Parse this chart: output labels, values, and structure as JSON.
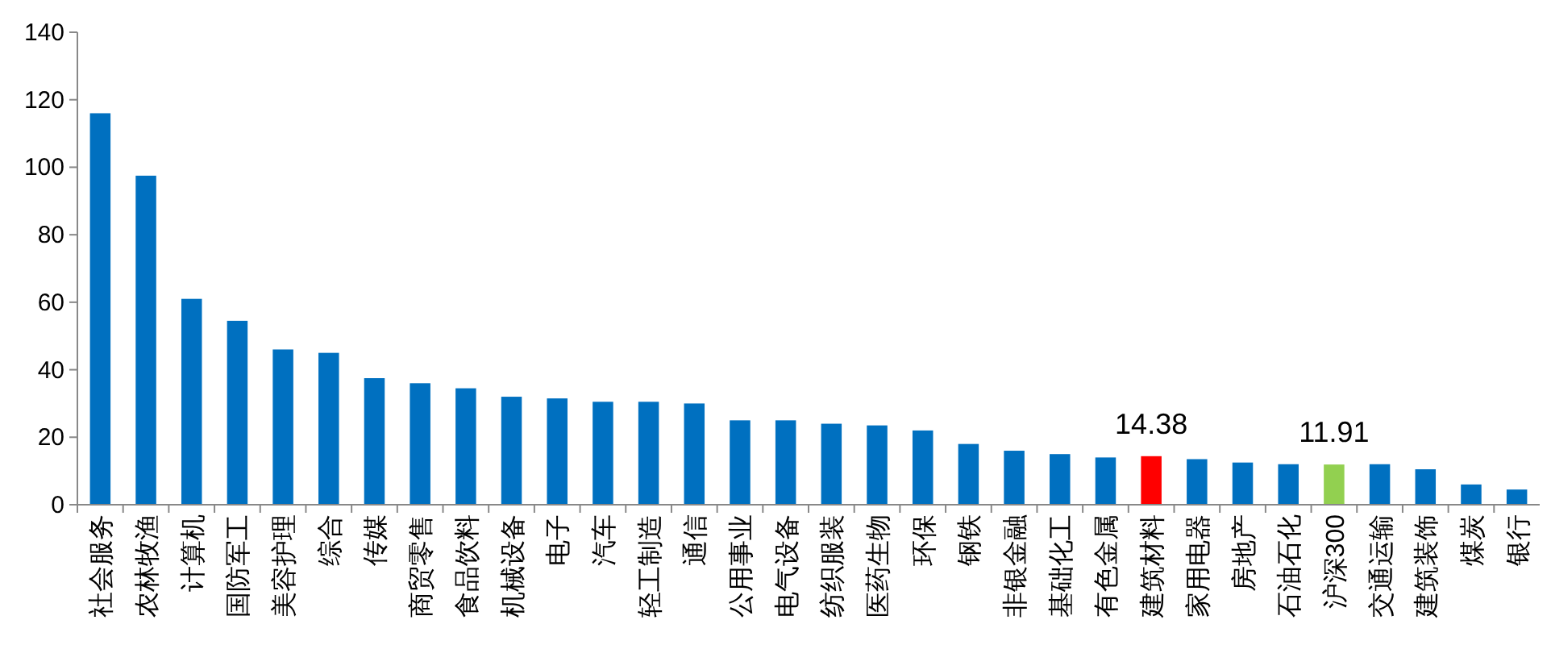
{
  "chart_data": {
    "type": "bar",
    "categories": [
      "社会服务",
      "农林牧渔",
      "计算机",
      "国防军工",
      "美容护理",
      "综合",
      "传媒",
      "商贸零售",
      "食品饮料",
      "机械设备",
      "电子",
      "汽车",
      "轻工制造",
      "通信",
      "公用事业",
      "电气设备",
      "纺织服装",
      "医药生物",
      "环保",
      "钢铁",
      "非银金融",
      "基础化工",
      "有色金属",
      "建筑材料",
      "家用电器",
      "房地产",
      "石油石化",
      "沪深300",
      "交通运输",
      "建筑装饰",
      "煤炭",
      "银行"
    ],
    "values": [
      116,
      97.5,
      61,
      54.5,
      46,
      45,
      37.5,
      36,
      34.5,
      32,
      31.5,
      30.5,
      30.5,
      30,
      25,
      25,
      24,
      23.5,
      22,
      18,
      16,
      15,
      14,
      14.38,
      13.5,
      12.5,
      12,
      11.91,
      12,
      10.5,
      6,
      4.5
    ],
    "colors": [
      "#0070c0",
      "#0070c0",
      "#0070c0",
      "#0070c0",
      "#0070c0",
      "#0070c0",
      "#0070c0",
      "#0070c0",
      "#0070c0",
      "#0070c0",
      "#0070c0",
      "#0070c0",
      "#0070c0",
      "#0070c0",
      "#0070c0",
      "#0070c0",
      "#0070c0",
      "#0070c0",
      "#0070c0",
      "#0070c0",
      "#0070c0",
      "#0070c0",
      "#0070c0",
      "#ff0000",
      "#0070c0",
      "#0070c0",
      "#0070c0",
      "#92d050",
      "#0070c0",
      "#0070c0",
      "#0070c0",
      "#0070c0"
    ],
    "value_labels": [
      null,
      null,
      null,
      null,
      null,
      null,
      null,
      null,
      null,
      null,
      null,
      null,
      null,
      null,
      null,
      null,
      null,
      null,
      null,
      null,
      null,
      null,
      null,
      "14.38",
      null,
      null,
      null,
      "11.91",
      null,
      null,
      null,
      null
    ],
    "ylim": [
      0,
      140
    ],
    "yticks": [
      0,
      20,
      40,
      60,
      80,
      100,
      120,
      140
    ],
    "grid": false
  }
}
